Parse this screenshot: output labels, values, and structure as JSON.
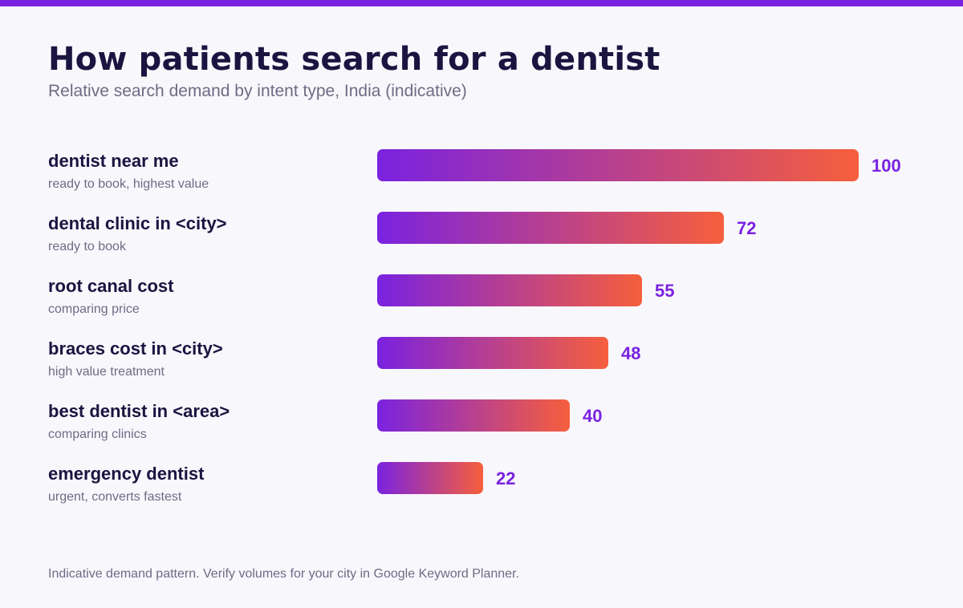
{
  "title": "How patients search for a dentist",
  "subtitle": "Relative search demand by intent type, India (indicative)",
  "footnote": "Indicative demand pattern. Verify volumes for your city in Google Keyword Planner.",
  "colors": {
    "accent": "#7a22e0",
    "gradient_start": "#7a22e0",
    "gradient_end": "#f65f3c",
    "title": "#1a1540",
    "muted": "#6f6b84",
    "value": "#7a22e0"
  },
  "chart_data": {
    "type": "bar",
    "orientation": "horizontal",
    "title": "How patients search for a dentist",
    "subtitle": "Relative search demand by intent type, India (indicative)",
    "xlim": [
      0,
      100
    ],
    "grid": false,
    "legend": "none",
    "categories": [
      "dentist near me",
      "dental clinic in <city>",
      "root canal cost",
      "braces cost in <city>",
      "best dentist in <area>",
      "emergency dentist"
    ],
    "descriptions": [
      "ready to book, highest value",
      "ready to book",
      "comparing price",
      "high value treatment",
      "comparing clinics",
      "urgent, converts fastest"
    ],
    "values": [
      100,
      72,
      55,
      48,
      40,
      22
    ]
  }
}
